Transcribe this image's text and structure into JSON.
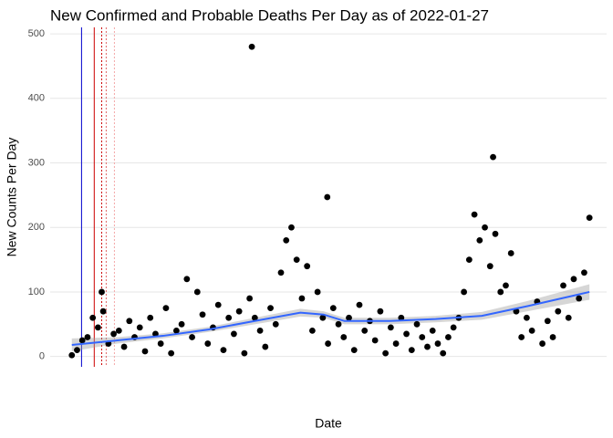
{
  "chart_data": {
    "type": "scatter",
    "title": "New Confirmed and Probable Deaths Per Day as of 2022-01-27",
    "x_label": "Date",
    "y_label": "New Counts Per Day",
    "x": [
      "2020-03-01",
      "2020-03-08",
      "2020-03-15",
      "2020-03-22",
      "2020-03-29",
      "2020-04-05",
      "2020-04-12",
      "2020-04-19",
      "2020-04-26",
      "2020-05-03",
      "2020-05-10",
      "2020-05-17",
      "2020-05-24",
      "2020-05-31",
      "2020-06-07",
      "2020-06-14",
      "2020-06-21",
      "2020-06-28",
      "2020-07-05",
      "2020-07-12",
      "2020-07-19",
      "2020-07-26",
      "2020-08-02",
      "2020-08-09",
      "2020-08-16",
      "2020-08-23",
      "2020-08-30",
      "2020-09-06",
      "2020-09-13",
      "2020-09-20",
      "2020-09-27",
      "2020-10-04",
      "2020-10-11",
      "2020-10-18",
      "2020-10-25",
      "2020-11-01",
      "2020-11-08",
      "2020-11-15",
      "2020-11-22",
      "2020-11-29",
      "2020-12-06",
      "2020-12-13",
      "2020-12-20",
      "2020-12-27",
      "2021-01-03",
      "2021-01-10",
      "2021-01-17",
      "2021-01-24",
      "2021-01-31",
      "2021-02-07",
      "2021-02-14",
      "2021-02-21",
      "2021-02-28",
      "2021-03-07",
      "2021-03-14",
      "2021-03-21",
      "2021-03-28",
      "2021-04-04",
      "2021-04-11",
      "2021-04-18",
      "2021-04-25",
      "2021-05-02",
      "2021-05-09",
      "2021-05-16",
      "2021-05-23",
      "2021-05-30",
      "2021-06-06",
      "2021-06-13",
      "2021-06-20",
      "2021-06-27",
      "2021-07-04",
      "2021-07-11",
      "2021-07-18",
      "2021-07-25",
      "2021-08-01",
      "2021-08-08",
      "2021-08-15",
      "2021-08-22",
      "2021-08-29",
      "2021-09-05",
      "2021-09-12",
      "2021-09-19",
      "2021-09-26",
      "2021-10-03",
      "2021-10-10",
      "2021-10-17",
      "2021-10-24",
      "2021-10-31",
      "2021-11-07",
      "2021-11-14",
      "2021-11-21",
      "2021-11-28",
      "2021-12-05",
      "2021-12-12",
      "2021-12-19",
      "2021-12-26",
      "2022-01-02",
      "2022-01-09",
      "2022-01-16",
      "2022-01-23",
      "2020-10-28",
      "2021-02-06",
      "2021-09-16",
      "2020-04-10"
    ],
    "values": [
      2,
      10,
      25,
      30,
      60,
      45,
      70,
      20,
      35,
      40,
      15,
      55,
      30,
      45,
      8,
      60,
      35,
      20,
      75,
      5,
      40,
      50,
      120,
      30,
      100,
      65,
      20,
      45,
      80,
      10,
      60,
      35,
      70,
      5,
      90,
      60,
      40,
      15,
      75,
      50,
      130,
      180,
      200,
      150,
      90,
      140,
      40,
      100,
      60,
      20,
      75,
      50,
      30,
      60,
      10,
      80,
      40,
      55,
      25,
      70,
      5,
      45,
      20,
      60,
      35,
      10,
      50,
      30,
      15,
      40,
      20,
      5,
      30,
      45,
      60,
      100,
      150,
      220,
      180,
      200,
      140,
      190,
      100,
      110,
      160,
      70,
      30,
      60,
      40,
      85,
      20,
      55,
      30,
      70,
      110,
      60,
      120,
      90,
      130,
      215,
      480,
      247,
      309,
      100
    ],
    "color": "#000000",
    "smooth": {
      "color": "#3366ff",
      "x": [
        "2020-03-01",
        "2020-05-01",
        "2020-07-01",
        "2020-09-01",
        "2020-11-01",
        "2021-01-01",
        "2021-02-01",
        "2021-03-01",
        "2021-05-01",
        "2021-07-01",
        "2021-09-01",
        "2021-11-01",
        "2022-01-23"
      ],
      "values": [
        18,
        25,
        32,
        42,
        55,
        68,
        65,
        55,
        55,
        58,
        63,
        78,
        100
      ],
      "se": [
        10,
        5,
        4,
        4,
        5,
        6,
        5,
        5,
        5,
        5,
        6,
        8,
        12
      ]
    },
    "vlines": [
      {
        "x": "2020-03-14",
        "color": "#0000cc",
        "dash": false
      },
      {
        "x": "2020-03-31",
        "color": "#cc0000",
        "dash": false
      },
      {
        "x": "2020-04-10",
        "color": "#cc0000",
        "dash": true
      },
      {
        "x": "2020-04-16",
        "color": "#e06666",
        "dash": true
      },
      {
        "x": "2020-04-27",
        "color": "#f4a6a6",
        "dash": true
      }
    ],
    "xlim": [
      "2020-02-01",
      "2022-02-15"
    ],
    "ylim": [
      -16,
      510
    ],
    "yticks": [
      0,
      100,
      200,
      300,
      400,
      500
    ],
    "grid": true
  }
}
